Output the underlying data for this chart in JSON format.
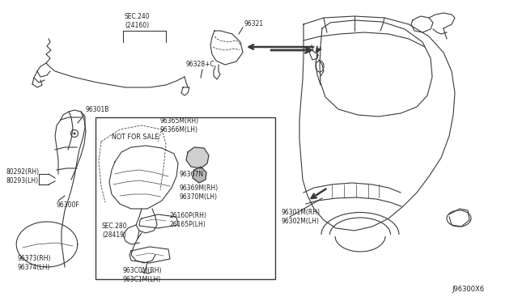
{
  "bg_color": "#ffffff",
  "line_color": "#3a3a3a",
  "diagram_id": "J96300X6",
  "labels": {
    "sec240": "SEC.240\n(24160)",
    "p96321": "96321",
    "p96328": "96328+C",
    "p96301B": "96301B",
    "p80292": "80292(RH)\n80293(LH)",
    "p96300F": "96300F",
    "p96365": "96365M(RH)\n96366M(LH)",
    "not_for_sale": "NOT FOR SALE",
    "p96367N": "96367N",
    "p96369": "96369M(RH)\n96370M(LH)",
    "sec280": "SEC.280\n(28419)",
    "p26160": "26160P(RH)\n26165P(LH)",
    "p96300": "963C0M(RH)\n963C1M(LH)",
    "p96373": "96373(RH)\n96374(LH)",
    "p96301M": "96301M(RH)\n96302M(LH)"
  }
}
